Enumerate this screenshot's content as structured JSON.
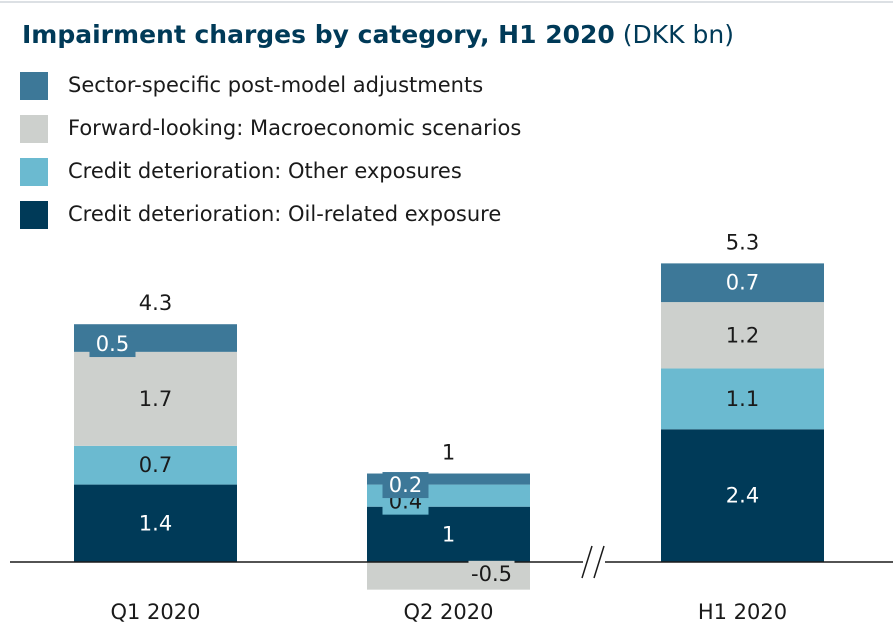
{
  "chart_data": {
    "type": "stacked_bar",
    "title": "Impairment charges by category, H1 2020",
    "unit": "(DKK bn)",
    "categories": [
      "Q1 2020",
      "Q2 2020",
      "H1 2020"
    ],
    "series": [
      {
        "name": "Credit deterioration: Oil-related exposure",
        "color": "#003a58",
        "values": [
          1.4,
          1.0,
          2.4
        ]
      },
      {
        "name": "Credit deterioration: Other exposures",
        "color": "#6bbad0",
        "values": [
          0.7,
          0.4,
          1.1
        ]
      },
      {
        "name": "Forward-looking: Macroeconomic scenarios",
        "color": "#cdd0cd",
        "values": [
          1.7,
          -0.5,
          1.2
        ]
      },
      {
        "name": "Sector-specific post-model adjustments",
        "color": "#3d7898",
        "values": [
          0.5,
          0.2,
          0.7
        ]
      }
    ],
    "totals": [
      4.3,
      1.0,
      5.3
    ]
  }
}
